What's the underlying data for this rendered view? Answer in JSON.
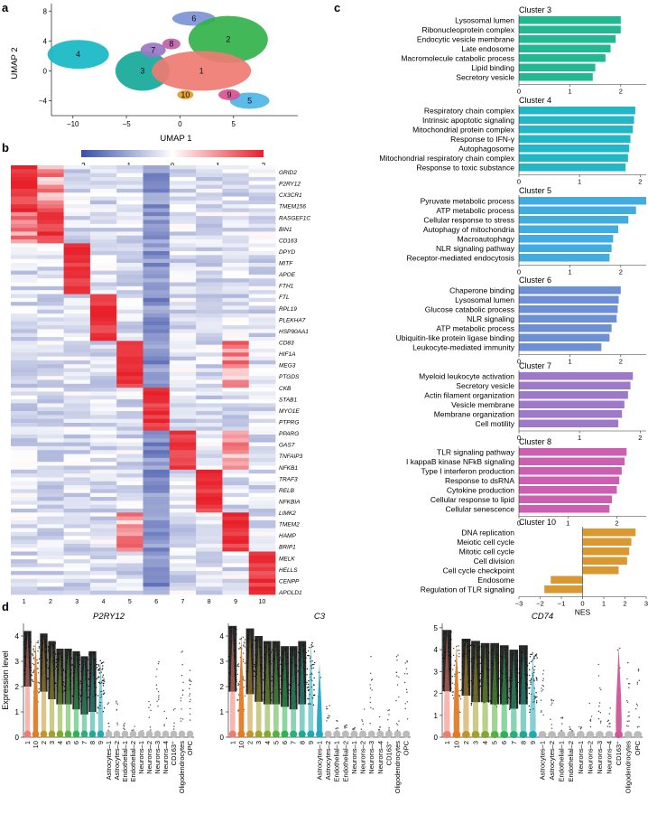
{
  "panels": {
    "a": "a",
    "b": "b",
    "c": "c",
    "d": "d"
  },
  "umap": {
    "xlabel": "UMAP 1",
    "ylabel": "UMAP 2",
    "xticks": [
      -10,
      -5,
      0,
      5
    ],
    "yticks": [
      8,
      4,
      0,
      -4
    ],
    "xlim": [
      -12,
      11
    ],
    "ylim": [
      -6,
      9
    ],
    "clusters": [
      {
        "id": "1",
        "cx": 2,
        "cy": 0,
        "color": "#ee7b72"
      },
      {
        "id": "2",
        "cx": 4.5,
        "cy": 4.2,
        "color": "#33b24a"
      },
      {
        "id": "3",
        "cx": -3.5,
        "cy": 0,
        "color": "#15a89a"
      },
      {
        "id": "4",
        "cx": -9.5,
        "cy": 2.2,
        "color": "#15b9c5"
      },
      {
        "id": "5",
        "cx": 6.5,
        "cy": -4,
        "color": "#4db6e8"
      },
      {
        "id": "6",
        "cx": 1.3,
        "cy": 7,
        "color": "#7b94d6"
      },
      {
        "id": "7",
        "cx": -2.5,
        "cy": 2.8,
        "color": "#9a76c5"
      },
      {
        "id": "8",
        "cx": -0.8,
        "cy": 3.6,
        "color": "#c05fa8"
      },
      {
        "id": "9",
        "cx": 4.6,
        "cy": -3.2,
        "color": "#d65290"
      },
      {
        "id": "10",
        "cx": 0.5,
        "cy": -3.2,
        "color": "#e39a24"
      }
    ]
  },
  "heatmap": {
    "scale_ticks": [
      "−2",
      "−1",
      "0",
      "1",
      "2"
    ],
    "columns": [
      "1",
      "2",
      "3",
      "4",
      "5",
      "6",
      "7",
      "8",
      "9",
      "10"
    ],
    "genes": [
      "GRID2",
      "P2RY12",
      "CX3CR1",
      "TMEM156",
      "RASGEF1C",
      "BIN1",
      "CD163",
      "DPYD",
      "MITF",
      "APOE",
      "FTH1",
      "FTL",
      "RPL19",
      "PLEKHA7",
      "HSP90AA1",
      "CD83",
      "HIF1A",
      "MEG3",
      "PTGDS",
      "CKB",
      "STAB1",
      "MYO1E",
      "PTPRG",
      "PPARG",
      "GAS7",
      "TNFAIP3",
      "NFKB1",
      "TRAF3",
      "RELB",
      "NFKBIA",
      "LIMK2",
      "TMEM2",
      "HAMP",
      "BRIP1",
      "MELK",
      "HELLS",
      "CENPP",
      "APOLD1"
    ]
  },
  "chart_data": [
    {
      "type": "bar",
      "title": "Cluster 3",
      "categories": [
        "Lysosomal lumen",
        "Ribonucleoprotein complex",
        "Endocytic vesicle membrane",
        "Late endosome",
        "Macromolecule catabolic process",
        "Lipid binding",
        "Secretory vesicle"
      ],
      "values": [
        2.0,
        2.0,
        1.9,
        1.8,
        1.7,
        1.5,
        1.45
      ],
      "xlim": [
        0,
        2.5
      ],
      "xticks": [
        0,
        1,
        2
      ],
      "color": "#22b892"
    },
    {
      "type": "bar",
      "title": "Cluster 4",
      "categories": [
        "Respiratory chain complex",
        "Intrinsic apoptotic signaling",
        "Mitochondrial protein complex",
        "Response to IFN-γ",
        "Autophagosome",
        "Mitochondrial respiratory chain complex",
        "Response to toxic substance"
      ],
      "values": [
        1.92,
        1.9,
        1.88,
        1.84,
        1.82,
        1.8,
        1.76
      ],
      "xlim": [
        0,
        2.1
      ],
      "xticks": [
        0,
        1,
        2
      ],
      "color": "#22b7c7"
    },
    {
      "type": "bar",
      "title": "Cluster 5",
      "categories": [
        "Pyruvate metabolic process",
        "ATP metabolic process",
        "Cellular response to stress",
        "Autophagy of mitochondria",
        "Macroautophagy",
        "NLR signaling pathway",
        "Receptor-mediated endocytosis"
      ],
      "values": [
        2.5,
        2.3,
        2.15,
        1.95,
        1.85,
        1.82,
        1.78
      ],
      "xlim": [
        0,
        2.5
      ],
      "xticks": [
        0,
        1,
        2
      ],
      "color": "#42ace0"
    },
    {
      "type": "bar",
      "title": "Cluster 6",
      "categories": [
        "Chaperone binding",
        "Lysosomal lumen",
        "Glucose catabolic process",
        "NLR signaling",
        "ATP metabolic process",
        "Ubiquitin-like protein ligase binding",
        "Leukocyte-mediated immunity"
      ],
      "values": [
        2.0,
        1.96,
        1.94,
        1.92,
        1.82,
        1.78,
        1.62
      ],
      "xlim": [
        0,
        2.5
      ],
      "xticks": [
        0,
        1,
        2
      ],
      "color": "#6d8fd4"
    },
    {
      "type": "bar",
      "title": "Cluster 7",
      "categories": [
        "Myeloid leukocyte activation",
        "Secretory vesicle",
        "Actin filament organization",
        "Vesicle membrane",
        "Membrane organization",
        "Cell motility"
      ],
      "values": [
        1.88,
        1.84,
        1.8,
        1.74,
        1.7,
        1.64
      ],
      "xlim": [
        0,
        2.1
      ],
      "xticks": [
        0,
        1,
        2
      ],
      "color": "#9e79c9"
    },
    {
      "type": "bar",
      "title": "Cluster 8",
      "categories": [
        "TLR signaling pathway",
        "I kappaB kinase NFkB signaling",
        "Type I interferon production",
        "Response to dsRNA",
        "Cytokine production",
        "Cellular response to lipid",
        "Cellular senescence"
      ],
      "values": [
        2.2,
        2.16,
        2.1,
        2.05,
        2.0,
        1.9,
        1.85
      ],
      "xlim": [
        0,
        2.6
      ],
      "xticks": [
        0,
        1,
        2
      ],
      "color": "#cc5fb2"
    },
    {
      "type": "bar",
      "title": "Cluster 10",
      "categories": [
        "DNA replication",
        "Meiotic cell cycle",
        "Mitotic cell cycle",
        "Cell division",
        "Cell cycle checkpoint",
        "Endosome",
        "Regulation of TLR signaling"
      ],
      "values": [
        2.5,
        2.3,
        2.2,
        2.1,
        1.7,
        -1.5,
        -1.8
      ],
      "xlim": [
        -3,
        3
      ],
      "xticks": [
        -3,
        -2,
        -1,
        0,
        1,
        2,
        3
      ],
      "xlabel": "NES",
      "color": "#d99830"
    }
  ],
  "violins": {
    "ylabel": "Expression level",
    "categories": [
      "1",
      "10",
      "2",
      "3",
      "4",
      "5",
      "6",
      "7",
      "8",
      "9",
      "Astrocytes–1",
      "Astrocytes–2",
      "Endothelial–1",
      "Endothelial–2",
      "Neurons–1",
      "Neurons–2",
      "Neurons–3",
      "Neurons–4",
      "CD163⁺",
      "Oligodendrocytes",
      "OPC"
    ],
    "colors": [
      "#f07c6e",
      "#e37b25",
      "#c3932c",
      "#a3a12a",
      "#7eab2e",
      "#53b23d",
      "#2fb256",
      "#2aae7a",
      "#21a894",
      "#1fa9b4",
      "#aaaaaa",
      "#aaaaaa",
      "#aaaaaa",
      "#aaaaaa",
      "#aaaaaa",
      "#aaaaaa",
      "#aaaaaa",
      "#aaaaaa",
      "#aaaaaa",
      "#aaaaaa",
      "#aaaaaa"
    ],
    "panels": [
      {
        "gene": "P2RY12",
        "ymax": 4.5,
        "yticks": [
          0,
          1,
          2,
          3,
          4
        ],
        "highs": [
          4.2,
          3.9,
          4.1,
          3.8,
          3.5,
          3.5,
          3.4,
          3.2,
          3.4,
          3.1,
          1.6,
          1.5,
          0.6,
          0.5,
          0.4,
          1.6,
          3.2,
          1.1,
          1.2,
          4.0,
          3.0
        ],
        "meds": [
          3.3,
          2.6,
          3.1,
          2.8,
          2.6,
          2.6,
          2.4,
          2.2,
          2.3,
          2.0,
          0.4,
          0.3,
          0.1,
          0.1,
          0.1,
          0.3,
          1.5,
          0.2,
          0.3,
          2.2,
          1.8
        ],
        "accent": -1
      },
      {
        "gene": "C3",
        "ymax": 4.5,
        "yticks": [
          0,
          1,
          2,
          3,
          4
        ],
        "highs": [
          4.4,
          4.1,
          4.3,
          4.0,
          3.8,
          3.8,
          3.6,
          3.6,
          3.8,
          3.8,
          3.0,
          1.3,
          0.7,
          0.5,
          0.4,
          1.3,
          3.3,
          1.2,
          1.2,
          3.4,
          3.3
        ],
        "meds": [
          3.1,
          2.5,
          3.0,
          2.7,
          2.6,
          2.6,
          2.5,
          2.4,
          2.6,
          2.5,
          1.6,
          0.3,
          0.1,
          0.1,
          0.1,
          0.3,
          1.2,
          0.2,
          0.3,
          1.7,
          1.6
        ],
        "accent": 10
      },
      {
        "gene": "CD74",
        "ymax": 5.2,
        "yticks": [
          0,
          1,
          2,
          3,
          4,
          5
        ],
        "highs": [
          4.9,
          4.3,
          4.5,
          4.4,
          4.3,
          4.3,
          4.2,
          4.0,
          4.2,
          4.0,
          3.2,
          2.2,
          1.0,
          0.6,
          0.5,
          1.8,
          3.6,
          1.5,
          4.2,
          4.1,
          3.3
        ],
        "meds": [
          3.4,
          2.6,
          3.2,
          2.9,
          2.9,
          2.8,
          2.8,
          2.6,
          2.8,
          2.5,
          1.5,
          0.4,
          0.1,
          0.1,
          0.1,
          0.3,
          1.6,
          0.2,
          2.6,
          2.2,
          1.6
        ],
        "accent": 18
      }
    ]
  }
}
